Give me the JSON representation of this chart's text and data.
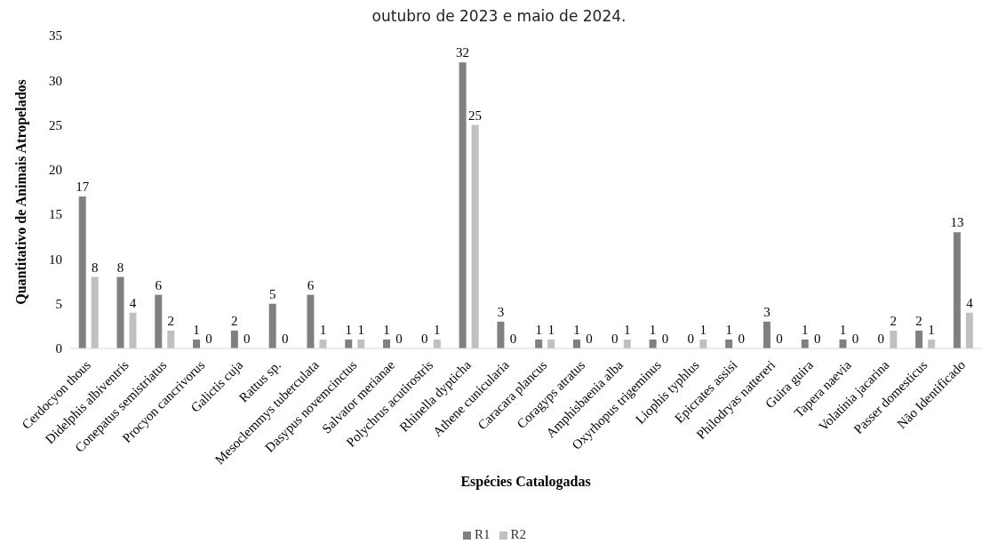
{
  "chart_data": {
    "type": "bar",
    "title": "outubro de 2023 e maio de 2024.",
    "xlabel": "Espécies Catalogadas",
    "ylabel": "Quantitativo de Animais Atropelados",
    "categories": [
      "Cerdocyon thous",
      "Didelphis albiventris",
      "Conepatus semistriatus",
      "Procyon cancrivorus",
      "Galictis cuja",
      "Rattus sp.",
      "Mesoclemmys tuberculata",
      "Dasypus novemcinctus",
      "Salvator merianae",
      "Polychrus acutirostris",
      "Rhinella dypticha",
      "Athene cunicularia",
      "Caracara plancus",
      "Coragyps atratus",
      "Amphisbaenia alba",
      "Oxyrhopus trigeminus",
      "Liophis typhlus",
      "Epicrates assisi",
      "Philodryas nattereri",
      "Guira guira",
      "Tapera naevia",
      "Volatinia jacarina",
      "Passer domesticus",
      "Não Identificado"
    ],
    "series": [
      {
        "name": "R1",
        "color": "#808080",
        "values": [
          17,
          8,
          6,
          1,
          2,
          5,
          6,
          1,
          1,
          0,
          32,
          3,
          1,
          1,
          0,
          1,
          0,
          1,
          3,
          1,
          1,
          0,
          2,
          13
        ]
      },
      {
        "name": "R2",
        "color": "#c0c0c0",
        "values": [
          8,
          4,
          2,
          0,
          0,
          0,
          1,
          1,
          0,
          1,
          25,
          0,
          1,
          0,
          1,
          0,
          1,
          0,
          0,
          0,
          0,
          2,
          1,
          4
        ]
      }
    ],
    "ylim": [
      0,
      35
    ],
    "yticks": [
      0,
      5,
      10,
      15,
      20,
      25,
      30,
      35
    ],
    "grid": false,
    "legend": "bottom",
    "data_labels": true
  }
}
